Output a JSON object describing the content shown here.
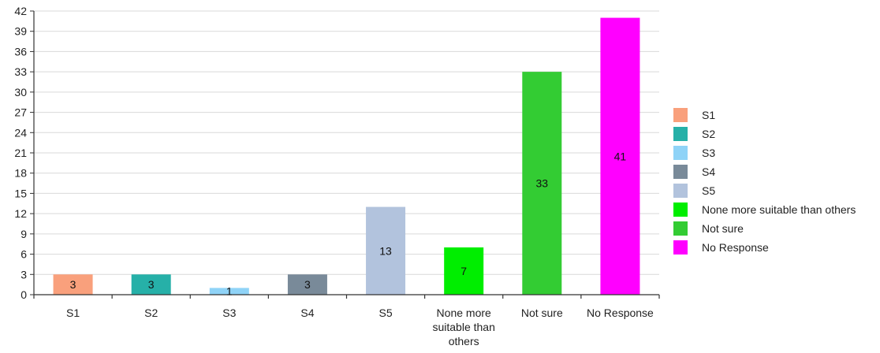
{
  "chart_data": {
    "type": "bar",
    "title": "",
    "xlabel": "",
    "ylabel": "",
    "categories": [
      "S1",
      "S2",
      "S3",
      "S4",
      "S5",
      "None more suitable than others",
      "Not sure",
      "No Response"
    ],
    "category_label_lines": [
      [
        "S1"
      ],
      [
        "S2"
      ],
      [
        "S3"
      ],
      [
        "S4"
      ],
      [
        "S5"
      ],
      [
        "None more",
        "suitable than",
        "others"
      ],
      [
        "Not sure"
      ],
      [
        "No Response"
      ]
    ],
    "values": [
      3,
      3,
      1,
      3,
      13,
      7,
      33,
      41
    ],
    "colors": [
      "#f9a07c",
      "#26b0a8",
      "#8fd3f7",
      "#798a99",
      "#b2c3dd",
      "#00ee00",
      "#33cc33",
      "#ff00ff"
    ],
    "ylim": [
      0,
      42
    ],
    "yticks": [
      0,
      3,
      6,
      9,
      12,
      15,
      18,
      21,
      24,
      27,
      30,
      33,
      36,
      39,
      42
    ],
    "grid": true,
    "legend": {
      "placement": "right",
      "entries": [
        "S1",
        "S2",
        "S3",
        "S4",
        "S5",
        "None more suitable than others",
        "Not sure",
        "No Response"
      ]
    }
  }
}
